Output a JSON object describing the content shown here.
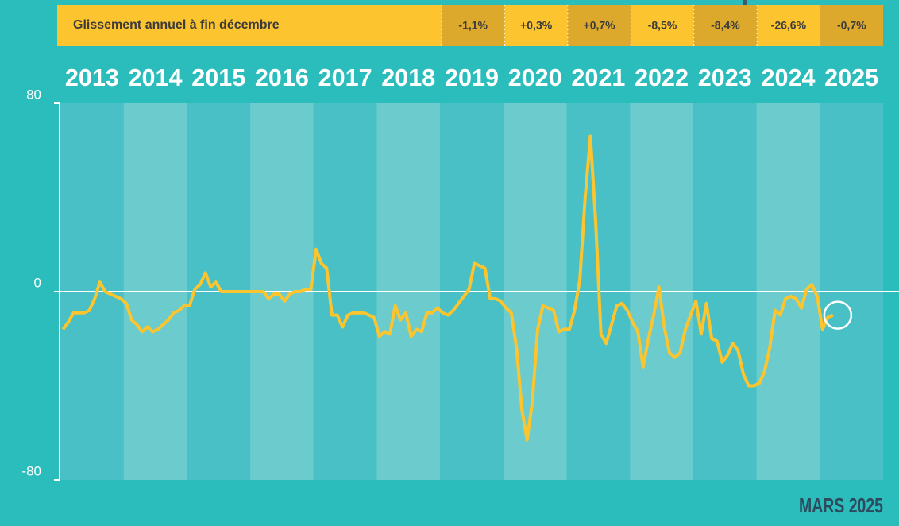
{
  "table": {
    "title": "Glissement annuel à fin décembre",
    "cells": [
      "-1,1%",
      "+0,3%",
      "+0,7%",
      "-8,5%",
      "-8,4%",
      "-26,6%",
      "-0,7%"
    ]
  },
  "chart_data": {
    "type": "line",
    "color": "#fcc42e",
    "xlim": [
      2013,
      2026
    ],
    "xticks": [
      {
        "value": 2013.5,
        "label": "2013"
      },
      {
        "value": 2014.5,
        "label": "2014"
      },
      {
        "value": 2015.5,
        "label": "2015"
      },
      {
        "value": 2016.5,
        "label": "2016"
      },
      {
        "value": 2017.5,
        "label": "2017"
      },
      {
        "value": 2018.5,
        "label": "2018"
      },
      {
        "value": 2019.5,
        "label": "2019"
      },
      {
        "value": 2020.5,
        "label": "2020"
      },
      {
        "value": 2021.5,
        "label": "2021"
      },
      {
        "value": 2022.5,
        "label": "2022"
      },
      {
        "value": 2023.5,
        "label": "2023"
      },
      {
        "value": 2024.5,
        "label": "2024"
      },
      {
        "value": 2025.5,
        "label": "2025"
      }
    ],
    "ylim": [
      -80,
      80
    ],
    "yticks": [
      -80,
      0,
      80
    ],
    "x": [
      2013.042,
      2013.125,
      2013.208,
      2013.292,
      2013.375,
      2013.458,
      2013.542,
      2013.625,
      2013.708,
      2013.792,
      2013.875,
      2013.958,
      2014.042,
      2014.125,
      2014.208,
      2014.292,
      2014.375,
      2014.458,
      2014.542,
      2014.625,
      2014.708,
      2014.792,
      2014.875,
      2014.958,
      2015.042,
      2015.125,
      2015.208,
      2015.292,
      2015.375,
      2015.458,
      2015.542,
      2015.625,
      2015.708,
      2015.792,
      2015.875,
      2015.958,
      2016.042,
      2016.125,
      2016.208,
      2016.292,
      2016.375,
      2016.458,
      2016.542,
      2016.625,
      2016.708,
      2016.792,
      2016.875,
      2016.958,
      2017.042,
      2017.125,
      2017.208,
      2017.292,
      2017.375,
      2017.458,
      2017.542,
      2017.625,
      2017.708,
      2017.792,
      2017.875,
      2017.958,
      2018.042,
      2018.125,
      2018.208,
      2018.292,
      2018.375,
      2018.458,
      2018.542,
      2018.625,
      2018.708,
      2018.792,
      2018.875,
      2018.958,
      2019.042,
      2019.125,
      2019.208,
      2019.292,
      2019.375,
      2019.458,
      2019.542,
      2019.625,
      2019.708,
      2019.792,
      2019.875,
      2019.958,
      2020.042,
      2020.125,
      2020.208,
      2020.292,
      2020.375,
      2020.458,
      2020.542,
      2020.625,
      2020.708,
      2020.792,
      2020.875,
      2020.958,
      2021.042,
      2021.125,
      2021.208,
      2021.292,
      2021.375,
      2021.458,
      2021.542,
      2021.625,
      2021.708,
      2021.792,
      2021.875,
      2021.958,
      2022.042,
      2022.125,
      2022.208,
      2022.292,
      2022.375,
      2022.458,
      2022.542,
      2022.625,
      2022.708,
      2022.792,
      2022.875,
      2022.958,
      2023.042,
      2023.125,
      2023.208,
      2023.292,
      2023.375,
      2023.458,
      2023.542,
      2023.625,
      2023.708,
      2023.792,
      2023.875,
      2023.958,
      2024.042,
      2024.125,
      2024.208,
      2024.292,
      2024.375,
      2024.458,
      2024.542,
      2024.625,
      2024.708,
      2024.792,
      2024.875,
      2024.958,
      2025.042,
      2025.125,
      2025.208
    ],
    "values": [
      -16,
      -13,
      -9,
      -9,
      -9,
      -8,
      -3,
      4,
      0,
      -1,
      -2,
      -3,
      -5,
      -12,
      -14,
      -17,
      -15,
      -17,
      -16,
      -14,
      -12,
      -9,
      -8,
      -6,
      -6,
      1,
      3,
      8,
      2,
      4,
      0,
      0,
      0,
      0,
      0,
      0,
      0,
      0,
      0,
      -3,
      -1,
      -1,
      -4,
      -1,
      0,
      0,
      1,
      1,
      18,
      12,
      10,
      -10,
      -10,
      -15,
      -10,
      -9,
      -9,
      -9,
      -10,
      -11,
      -19,
      -17,
      -18,
      -6,
      -12,
      -9,
      -19,
      -16,
      -17,
      -9,
      -9,
      -7,
      -9,
      -10,
      -8,
      -5,
      -2,
      1,
      12,
      11,
      10,
      -3,
      -3,
      -4,
      -7,
      -9,
      -24,
      -50,
      -63,
      -47,
      -16,
      -6,
      -7,
      -8,
      -17,
      -16,
      -16,
      -8,
      5,
      40,
      66,
      30,
      -18,
      -22,
      -14,
      -6,
      -5,
      -8,
      -13,
      -17,
      -32,
      -20,
      -10,
      2,
      -15,
      -26,
      -28,
      -26,
      -16,
      -10,
      -4,
      -18,
      -5,
      -20,
      -21,
      -30,
      -27,
      -22,
      -25,
      -35,
      -40,
      -40,
      -39,
      -34,
      -24,
      -8,
      -10,
      -3,
      -2,
      -3,
      -7,
      1,
      3,
      -2,
      -16,
      -11,
      -10
    ]
  },
  "footer": "MARS 2025"
}
